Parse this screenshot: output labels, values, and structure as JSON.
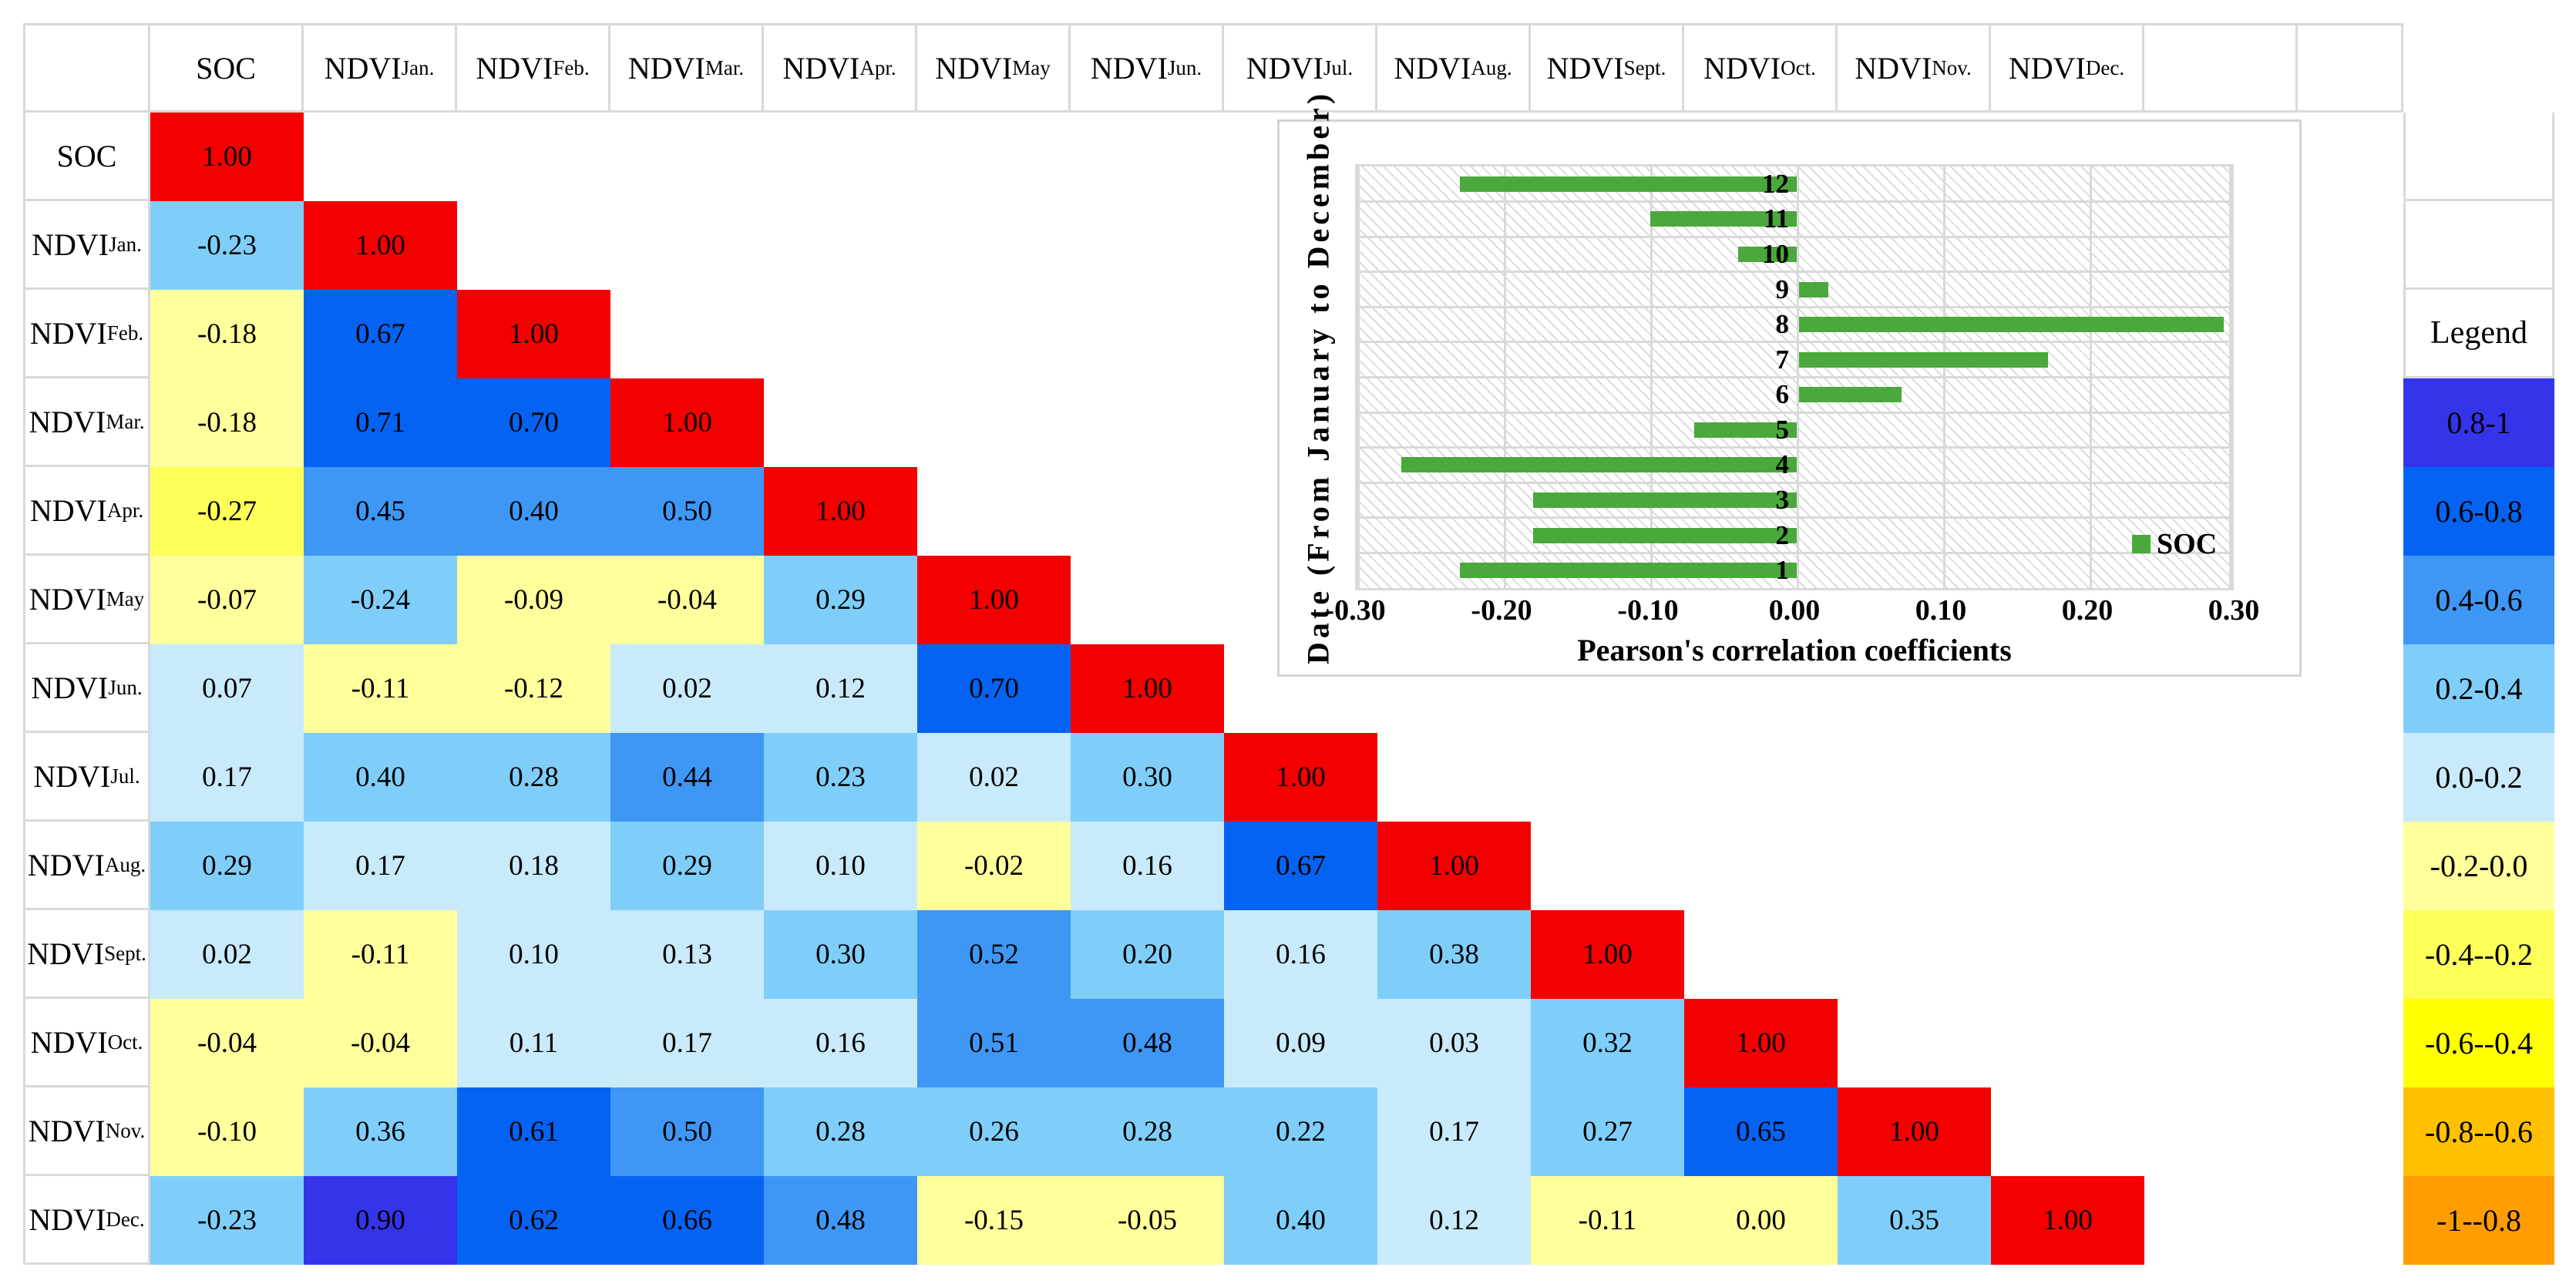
{
  "colors": {
    "grid_gray": "#D9D9D9",
    "red": "#F40000",
    "blue_08_1": "#3434EB",
    "blue_06_08": "#0563F4",
    "blue_04_06": "#3E97F5",
    "blue_02_04": "#7FCEFA",
    "blue_00_02": "#C8EAFB",
    "yellow_n02_00": "#FFFF9C",
    "yellow_n04_n02": "#FFFF5A",
    "yellow_n06_n04": "#FFFF00",
    "amber_n08_n06": "#FFC000",
    "orange_n1_n08": "#FF9D00",
    "bar_green": "#4BA83C"
  },
  "matrix": {
    "col_headers": [
      {
        "main": "SOC",
        "sub": ""
      },
      {
        "main": "NDVI",
        "sub": "Jan."
      },
      {
        "main": "NDVI",
        "sub": "Feb."
      },
      {
        "main": "NDVI",
        "sub": "Mar."
      },
      {
        "main": "NDVI",
        "sub": "Apr."
      },
      {
        "main": "NDVI",
        "sub": "May"
      },
      {
        "main": "NDVI",
        "sub": "Jun."
      },
      {
        "main": "NDVI",
        "sub": "Jul."
      },
      {
        "main": "NDVI",
        "sub": "Aug."
      },
      {
        "main": "NDVI",
        "sub": "Sept."
      },
      {
        "main": "NDVI",
        "sub": "Oct."
      },
      {
        "main": "NDVI",
        "sub": "Nov."
      },
      {
        "main": "NDVI",
        "sub": "Dec."
      }
    ],
    "rows": [
      {
        "label_main": "SOC",
        "label_sub": "",
        "cells": [
          {
            "v": "1.00",
            "c": "red"
          }
        ]
      },
      {
        "label_main": "NDVI",
        "label_sub": "Jan.",
        "cells": [
          {
            "v": "-0.23",
            "c": "blue_02_04"
          },
          {
            "v": "1.00",
            "c": "red"
          }
        ]
      },
      {
        "label_main": "NDVI",
        "label_sub": "Feb.",
        "cells": [
          {
            "v": "-0.18",
            "c": "yellow_n02_00"
          },
          {
            "v": "0.67",
            "c": "blue_06_08"
          },
          {
            "v": "1.00",
            "c": "red"
          }
        ]
      },
      {
        "label_main": "NDVI",
        "label_sub": "Mar.",
        "cells": [
          {
            "v": "-0.18",
            "c": "yellow_n02_00"
          },
          {
            "v": "0.71",
            "c": "blue_06_08"
          },
          {
            "v": "0.70",
            "c": "blue_06_08"
          },
          {
            "v": "1.00",
            "c": "red"
          }
        ]
      },
      {
        "label_main": "NDVI",
        "label_sub": "Apr.",
        "cells": [
          {
            "v": "-0.27",
            "c": "yellow_n04_n02"
          },
          {
            "v": "0.45",
            "c": "blue_04_06"
          },
          {
            "v": "0.40",
            "c": "blue_04_06"
          },
          {
            "v": "0.50",
            "c": "blue_04_06"
          },
          {
            "v": "1.00",
            "c": "red"
          }
        ]
      },
      {
        "label_main": "NDVI",
        "label_sub": "May",
        "cells": [
          {
            "v": "-0.07",
            "c": "yellow_n02_00"
          },
          {
            "v": "-0.24",
            "c": "blue_02_04"
          },
          {
            "v": "-0.09",
            "c": "yellow_n02_00"
          },
          {
            "v": "-0.04",
            "c": "yellow_n02_00"
          },
          {
            "v": "0.29",
            "c": "blue_02_04"
          },
          {
            "v": "1.00",
            "c": "red"
          }
        ]
      },
      {
        "label_main": "NDVI",
        "label_sub": "Jun.",
        "cells": [
          {
            "v": "0.07",
            "c": "blue_00_02"
          },
          {
            "v": "-0.11",
            "c": "yellow_n02_00"
          },
          {
            "v": "-0.12",
            "c": "yellow_n02_00"
          },
          {
            "v": "0.02",
            "c": "blue_00_02"
          },
          {
            "v": "0.12",
            "c": "blue_00_02"
          },
          {
            "v": "0.70",
            "c": "blue_06_08"
          },
          {
            "v": "1.00",
            "c": "red"
          }
        ]
      },
      {
        "label_main": "NDVI",
        "label_sub": "Jul.",
        "cells": [
          {
            "v": "0.17",
            "c": "blue_00_02"
          },
          {
            "v": "0.40",
            "c": "blue_02_04"
          },
          {
            "v": "0.28",
            "c": "blue_02_04"
          },
          {
            "v": "0.44",
            "c": "blue_04_06"
          },
          {
            "v": "0.23",
            "c": "blue_02_04"
          },
          {
            "v": "0.02",
            "c": "blue_00_02"
          },
          {
            "v": "0.30",
            "c": "blue_02_04"
          },
          {
            "v": "1.00",
            "c": "red"
          }
        ]
      },
      {
        "label_main": "NDVI",
        "label_sub": "Aug.",
        "cells": [
          {
            "v": "0.29",
            "c": "blue_02_04"
          },
          {
            "v": "0.17",
            "c": "blue_00_02"
          },
          {
            "v": "0.18",
            "c": "blue_00_02"
          },
          {
            "v": "0.29",
            "c": "blue_02_04"
          },
          {
            "v": "0.10",
            "c": "blue_00_02"
          },
          {
            "v": "-0.02",
            "c": "yellow_n02_00"
          },
          {
            "v": "0.16",
            "c": "blue_00_02"
          },
          {
            "v": "0.67",
            "c": "blue_06_08"
          },
          {
            "v": "1.00",
            "c": "red"
          }
        ]
      },
      {
        "label_main": "NDVI",
        "label_sub": "Sept.",
        "cells": [
          {
            "v": "0.02",
            "c": "blue_00_02"
          },
          {
            "v": "-0.11",
            "c": "yellow_n02_00"
          },
          {
            "v": "0.10",
            "c": "blue_00_02"
          },
          {
            "v": "0.13",
            "c": "blue_00_02"
          },
          {
            "v": "0.30",
            "c": "blue_02_04"
          },
          {
            "v": "0.52",
            "c": "blue_04_06"
          },
          {
            "v": "0.20",
            "c": "blue_02_04"
          },
          {
            "v": "0.16",
            "c": "blue_00_02"
          },
          {
            "v": "0.38",
            "c": "blue_02_04"
          },
          {
            "v": "1.00",
            "c": "red"
          }
        ]
      },
      {
        "label_main": "NDVI",
        "label_sub": "Oct.",
        "cells": [
          {
            "v": "-0.04",
            "c": "yellow_n02_00"
          },
          {
            "v": "-0.04",
            "c": "yellow_n02_00"
          },
          {
            "v": "0.11",
            "c": "blue_00_02"
          },
          {
            "v": "0.17",
            "c": "blue_00_02"
          },
          {
            "v": "0.16",
            "c": "blue_00_02"
          },
          {
            "v": "0.51",
            "c": "blue_04_06"
          },
          {
            "v": "0.48",
            "c": "blue_04_06"
          },
          {
            "v": "0.09",
            "c": "blue_00_02"
          },
          {
            "v": "0.03",
            "c": "blue_00_02"
          },
          {
            "v": "0.32",
            "c": "blue_02_04"
          },
          {
            "v": "1.00",
            "c": "red"
          }
        ]
      },
      {
        "label_main": "NDVI",
        "label_sub": "Nov.",
        "cells": [
          {
            "v": "-0.10",
            "c": "yellow_n02_00"
          },
          {
            "v": "0.36",
            "c": "blue_02_04"
          },
          {
            "v": "0.61",
            "c": "blue_06_08"
          },
          {
            "v": "0.50",
            "c": "blue_04_06"
          },
          {
            "v": "0.28",
            "c": "blue_02_04"
          },
          {
            "v": "0.26",
            "c": "blue_02_04"
          },
          {
            "v": "0.28",
            "c": "blue_02_04"
          },
          {
            "v": "0.22",
            "c": "blue_02_04"
          },
          {
            "v": "0.17",
            "c": "blue_00_02"
          },
          {
            "v": "0.27",
            "c": "blue_02_04"
          },
          {
            "v": "0.65",
            "c": "blue_06_08"
          },
          {
            "v": "1.00",
            "c": "red"
          }
        ]
      },
      {
        "label_main": "NDVI",
        "label_sub": "Dec.",
        "cells": [
          {
            "v": "-0.23",
            "c": "blue_02_04"
          },
          {
            "v": "0.90",
            "c": "blue_08_1"
          },
          {
            "v": "0.62",
            "c": "blue_06_08"
          },
          {
            "v": "0.66",
            "c": "blue_06_08"
          },
          {
            "v": "0.48",
            "c": "blue_04_06"
          },
          {
            "v": "-0.15",
            "c": "yellow_n02_00"
          },
          {
            "v": "-0.05",
            "c": "yellow_n02_00"
          },
          {
            "v": "0.40",
            "c": "blue_02_04"
          },
          {
            "v": "0.12",
            "c": "blue_00_02"
          },
          {
            "v": "-0.11",
            "c": "yellow_n02_00"
          },
          {
            "v": "0.00",
            "c": "yellow_n02_00"
          },
          {
            "v": "0.35",
            "c": "blue_02_04"
          },
          {
            "v": "1.00",
            "c": "red"
          }
        ]
      }
    ]
  },
  "legend": {
    "title": "Legend",
    "items": [
      {
        "label": "0.8-1",
        "c": "blue_08_1"
      },
      {
        "label": "0.6-0.8",
        "c": "blue_06_08"
      },
      {
        "label": "0.4-0.6",
        "c": "blue_04_06"
      },
      {
        "label": "0.2-0.4",
        "c": "blue_02_04"
      },
      {
        "label": "0.0-0.2",
        "c": "blue_00_02"
      },
      {
        "label": "-0.2-0.0",
        "c": "yellow_n02_00"
      },
      {
        "label": "-0.4--0.2",
        "c": "yellow_n04_n02"
      },
      {
        "label": "-0.6--0.4",
        "c": "yellow_n06_n04"
      },
      {
        "label": "-0.8--0.6",
        "c": "amber_n08_n06"
      },
      {
        "label": "-1--0.8",
        "c": "orange_n1_n08"
      }
    ]
  },
  "chart_data": {
    "type": "bar",
    "orientation": "horizontal",
    "categories": [
      "1",
      "2",
      "3",
      "4",
      "5",
      "6",
      "7",
      "8",
      "9",
      "10",
      "11",
      "12"
    ],
    "values": [
      -0.23,
      -0.18,
      -0.18,
      -0.27,
      -0.07,
      0.07,
      0.17,
      0.29,
      0.02,
      -0.04,
      -0.1,
      -0.23
    ],
    "series_name": "SOC",
    "legend_label": "SOC",
    "xlabel": "Pearson's correlation coefficients",
    "ylabel": "Date (From January to December)",
    "xlim": [
      -0.3,
      0.3
    ],
    "xticks": [
      "-0.30",
      "-0.20",
      "-0.10",
      "0.00",
      "0.10",
      "0.20",
      "0.30"
    ],
    "grid": "on",
    "legend_position": "inside-right",
    "bar_color": "#4BA83C"
  }
}
